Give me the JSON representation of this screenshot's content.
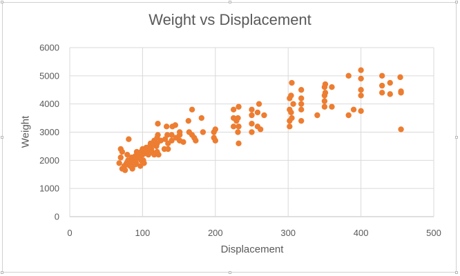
{
  "chart_data": {
    "type": "scatter",
    "title": "Weight vs Displacement",
    "xlabel": "Displacement",
    "ylabel": "Weight",
    "xlim": [
      0,
      500
    ],
    "ylim": [
      0,
      6000
    ],
    "x_ticks": [
      0,
      100,
      200,
      300,
      400,
      500
    ],
    "y_ticks": [
      0,
      1000,
      2000,
      3000,
      4000,
      5000,
      6000
    ],
    "grid": true,
    "legend": "none",
    "marker_color": "#ED7D31",
    "series": [
      {
        "points": [
          [
            68,
            1900
          ],
          [
            70,
            2100
          ],
          [
            70,
            2400
          ],
          [
            72,
            1700
          ],
          [
            72,
            2300
          ],
          [
            75,
            1800
          ],
          [
            76,
            1650
          ],
          [
            78,
            1900
          ],
          [
            79,
            1850
          ],
          [
            79,
            2200
          ],
          [
            80,
            2000
          ],
          [
            81,
            2750
          ],
          [
            83,
            1800
          ],
          [
            85,
            1950
          ],
          [
            85,
            2100
          ],
          [
            86,
            1700
          ],
          [
            88,
            2100
          ],
          [
            90,
            2000
          ],
          [
            90,
            2150
          ],
          [
            90,
            1850
          ],
          [
            91,
            1900
          ],
          [
            91,
            2050
          ],
          [
            92,
            2300
          ],
          [
            93,
            2200
          ],
          [
            95,
            2100
          ],
          [
            97,
            2150
          ],
          [
            97,
            2250
          ],
          [
            97,
            1800
          ],
          [
            98,
            2000
          ],
          [
            98,
            2300
          ],
          [
            100,
            2200
          ],
          [
            100,
            2400
          ],
          [
            101,
            2000
          ],
          [
            102,
            1900
          ],
          [
            104,
            2250
          ],
          [
            105,
            2300
          ],
          [
            105,
            2450
          ],
          [
            107,
            2350
          ],
          [
            108,
            2200
          ],
          [
            110,
            2500
          ],
          [
            111,
            2600
          ],
          [
            112,
            2400
          ],
          [
            113,
            2300
          ],
          [
            114,
            2550
          ],
          [
            116,
            2700
          ],
          [
            116,
            2200
          ],
          [
            119,
            2250
          ],
          [
            119,
            2500
          ],
          [
            120,
            2800
          ],
          [
            120,
            2300
          ],
          [
            120,
            2600
          ],
          [
            121,
            2900
          ],
          [
            121,
            3300
          ],
          [
            122,
            2200
          ],
          [
            125,
            2700
          ],
          [
            130,
            2400
          ],
          [
            131,
            2750
          ],
          [
            133,
            3200
          ],
          [
            134,
            2900
          ],
          [
            135,
            2400
          ],
          [
            135,
            2600
          ],
          [
            140,
            2700
          ],
          [
            140,
            2900
          ],
          [
            141,
            3200
          ],
          [
            145,
            3250
          ],
          [
            146,
            2800
          ],
          [
            151,
            2900
          ],
          [
            151,
            2700
          ],
          [
            151,
            3000
          ],
          [
            156,
            2650
          ],
          [
            163,
            3400
          ],
          [
            164,
            3000
          ],
          [
            168,
            2900
          ],
          [
            168,
            3800
          ],
          [
            171,
            2800
          ],
          [
            173,
            2700
          ],
          [
            181,
            3500
          ],
          [
            183,
            3000
          ],
          [
            198,
            2800
          ],
          [
            198,
            3000
          ],
          [
            200,
            3100
          ],
          [
            200,
            2700
          ],
          [
            225,
            3500
          ],
          [
            225,
            3800
          ],
          [
            225,
            3200
          ],
          [
            229,
            3400
          ],
          [
            231,
            3500
          ],
          [
            231,
            3000
          ],
          [
            232,
            2600
          ],
          [
            232,
            3200
          ],
          [
            232,
            3900
          ],
          [
            250,
            3300
          ],
          [
            250,
            3600
          ],
          [
            250,
            3800
          ],
          [
            250,
            3000
          ],
          [
            258,
            3700
          ],
          [
            258,
            3200
          ],
          [
            260,
            4000
          ],
          [
            262,
            3100
          ],
          [
            267,
            3600
          ],
          [
            302,
            3200
          ],
          [
            302,
            3400
          ],
          [
            302,
            3800
          ],
          [
            302,
            4200
          ],
          [
            304,
            3700
          ],
          [
            304,
            4300
          ],
          [
            305,
            4750
          ],
          [
            305,
            3500
          ],
          [
            307,
            4000
          ],
          [
            318,
            3800
          ],
          [
            318,
            4200
          ],
          [
            318,
            4500
          ],
          [
            318,
            3400
          ],
          [
            318,
            4000
          ],
          [
            340,
            3600
          ],
          [
            350,
            3900
          ],
          [
            350,
            4300
          ],
          [
            350,
            4600
          ],
          [
            350,
            4100
          ],
          [
            351,
            4700
          ],
          [
            351,
            4400
          ],
          [
            360,
            4600
          ],
          [
            360,
            3900
          ],
          [
            383,
            5000
          ],
          [
            383,
            3600
          ],
          [
            390,
            3800
          ],
          [
            400,
            4300
          ],
          [
            400,
            4500
          ],
          [
            400,
            4900
          ],
          [
            400,
            5200
          ],
          [
            400,
            3750
          ],
          [
            429,
            5000
          ],
          [
            429,
            4400
          ],
          [
            429,
            4650
          ],
          [
            440,
            4750
          ],
          [
            440,
            4350
          ],
          [
            454,
            4950
          ],
          [
            455,
            4400
          ],
          [
            455,
            4450
          ],
          [
            455,
            3100
          ]
        ]
      }
    ]
  }
}
